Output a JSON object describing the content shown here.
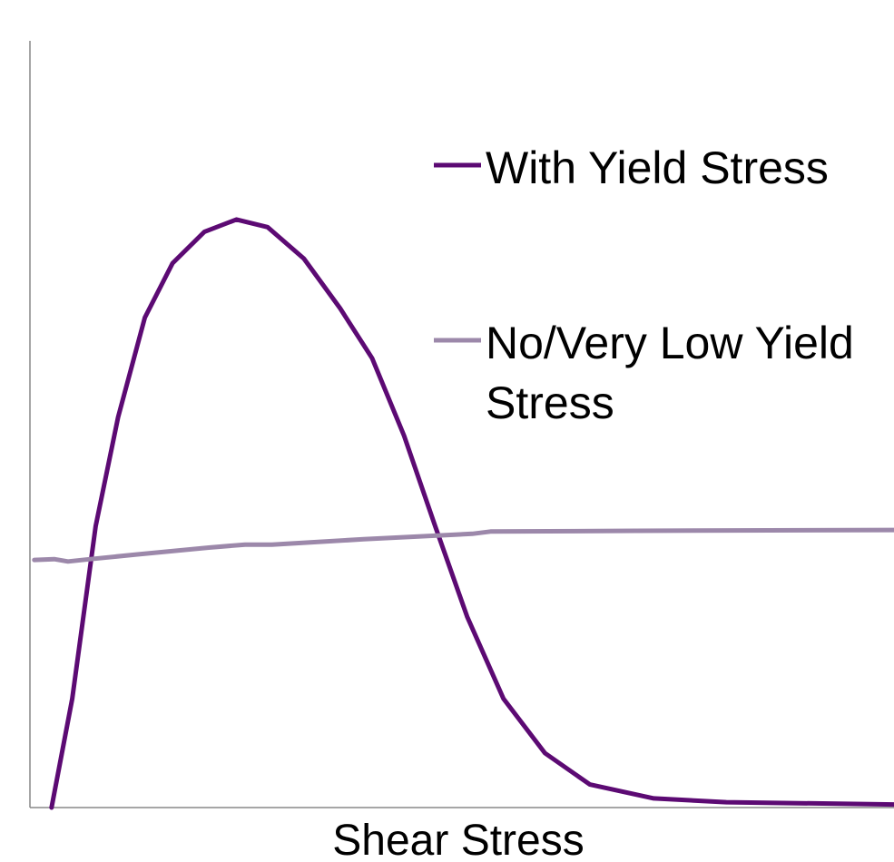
{
  "chart_data": {
    "type": "line",
    "x_label": "Shear Stress",
    "xlim": [
      0,
      100
    ],
    "ylim": [
      0,
      100
    ],
    "series": [
      {
        "name": "With Yield Stress",
        "color": "#5c0a73",
        "x": [
          2.5,
          4.9,
          7.6,
          10.2,
          13.3,
          16.5,
          20.2,
          23.9,
          27.5,
          31.7,
          35.9,
          39.6,
          43.3,
          46.9,
          50.6,
          54.8,
          59.6,
          64.8,
          72.2,
          80.6,
          100
        ],
        "values": [
          0,
          14.2,
          36.7,
          50.9,
          63.9,
          71.0,
          75.1,
          76.7,
          75.7,
          71.6,
          65.1,
          58.6,
          48.5,
          36.7,
          24.9,
          14.2,
          7.1,
          3.0,
          1.2,
          0.7,
          0.4
        ]
      },
      {
        "name": "No/Very Low Yield Stress",
        "color": "#9c88aa",
        "x": [
          0.5,
          2.8,
          4.4,
          7.0,
          12.3,
          20.7,
          24.9,
          28.0,
          38.6,
          51.2,
          53.3,
          70.1,
          100
        ],
        "values": [
          32.3,
          32.4,
          32.1,
          32.4,
          33.0,
          33.9,
          34.3,
          34.3,
          35.0,
          35.7,
          36.0,
          36.1,
          36.2
        ]
      }
    ]
  }
}
